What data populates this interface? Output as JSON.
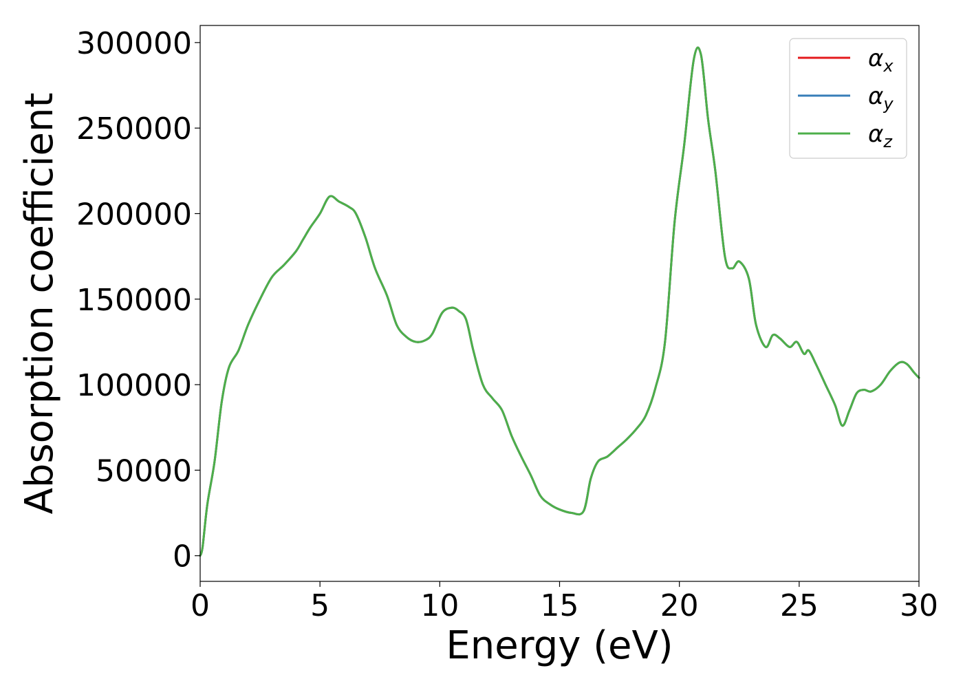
{
  "chart_data": {
    "type": "line",
    "title": "",
    "xlabel": "Energy (eV)",
    "ylabel": "Absorption coefficient",
    "xlim": [
      0,
      30
    ],
    "ylim": [
      -15000,
      310000
    ],
    "xticks": [
      0,
      5,
      10,
      15,
      20,
      25,
      30
    ],
    "xtick_labels": [
      "0",
      "5",
      "10",
      "15",
      "20",
      "25",
      "30"
    ],
    "yticks": [
      0,
      50000,
      100000,
      150000,
      200000,
      250000,
      300000
    ],
    "ytick_labels": [
      "0",
      "50000",
      "100000",
      "150000",
      "200000",
      "250000",
      "300000"
    ],
    "grid": false,
    "legend_position": "top-right",
    "series": [
      {
        "name": "α_x",
        "legend_base": "α",
        "legend_sub": "x",
        "color": "#e41a1c",
        "x": [
          0,
          0.1,
          0.3,
          0.6,
          0.9,
          1.2,
          1.6,
          2.0,
          2.5,
          3.0,
          3.5,
          4.0,
          4.3,
          4.6,
          5.0,
          5.4,
          5.8,
          6.2,
          6.5,
          6.9,
          7.3,
          7.8,
          8.2,
          8.6,
          9.0,
          9.4,
          9.7,
          10.1,
          10.5,
          10.8,
          11.1,
          11.4,
          11.8,
          12.2,
          12.6,
          13.0,
          13.4,
          13.8,
          14.2,
          14.6,
          15.0,
          15.5,
          16.0,
          16.3,
          16.6,
          17.0,
          17.4,
          17.8,
          18.2,
          18.6,
          19.0,
          19.4,
          19.8,
          20.2,
          20.6,
          20.9,
          21.2,
          21.5,
          21.9,
          22.2,
          22.5,
          22.9,
          23.2,
          23.6,
          23.9,
          24.2,
          24.6,
          24.9,
          25.2,
          25.4,
          25.7,
          26.1,
          26.5,
          26.8,
          27.1,
          27.4,
          27.7,
          28.0,
          28.4,
          28.8,
          29.2,
          29.5,
          29.8,
          30.0
        ],
        "y": [
          0,
          5000,
          30000,
          55000,
          90000,
          110000,
          120000,
          135000,
          150000,
          163000,
          170000,
          178000,
          185000,
          192000,
          200000,
          210000,
          207000,
          204000,
          200000,
          186000,
          168000,
          152000,
          135000,
          128000,
          125000,
          126000,
          130000,
          142000,
          145000,
          143000,
          138000,
          120000,
          100000,
          92000,
          85000,
          70000,
          58000,
          47000,
          35000,
          30000,
          27000,
          25000,
          26000,
          45000,
          55000,
          58000,
          63000,
          68000,
          74000,
          82000,
          98000,
          125000,
          195000,
          240000,
          290000,
          293000,
          255000,
          225000,
          175000,
          168000,
          172000,
          162000,
          135000,
          122000,
          129000,
          127000,
          122000,
          125000,
          118000,
          120000,
          112000,
          100000,
          88000,
          76000,
          85000,
          95000,
          97000,
          96000,
          100000,
          108000,
          113000,
          112000,
          107000,
          104000
        ]
      },
      {
        "name": "α_y",
        "legend_base": "α",
        "legend_sub": "y",
        "color": "#377eb8",
        "x": [
          0,
          0.1,
          0.3,
          0.6,
          0.9,
          1.2,
          1.6,
          2.0,
          2.5,
          3.0,
          3.5,
          4.0,
          4.3,
          4.6,
          5.0,
          5.4,
          5.8,
          6.2,
          6.5,
          6.9,
          7.3,
          7.8,
          8.2,
          8.6,
          9.0,
          9.4,
          9.7,
          10.1,
          10.5,
          10.8,
          11.1,
          11.4,
          11.8,
          12.2,
          12.6,
          13.0,
          13.4,
          13.8,
          14.2,
          14.6,
          15.0,
          15.5,
          16.0,
          16.3,
          16.6,
          17.0,
          17.4,
          17.8,
          18.2,
          18.6,
          19.0,
          19.4,
          19.8,
          20.2,
          20.6,
          20.9,
          21.2,
          21.5,
          21.9,
          22.2,
          22.5,
          22.9,
          23.2,
          23.6,
          23.9,
          24.2,
          24.6,
          24.9,
          25.2,
          25.4,
          25.7,
          26.1,
          26.5,
          26.8,
          27.1,
          27.4,
          27.7,
          28.0,
          28.4,
          28.8,
          29.2,
          29.5,
          29.8,
          30.0
        ],
        "y": [
          0,
          5000,
          30000,
          55000,
          90000,
          110000,
          120000,
          135000,
          150000,
          163000,
          170000,
          178000,
          185000,
          192000,
          200000,
          210000,
          207000,
          204000,
          200000,
          186000,
          168000,
          152000,
          135000,
          128000,
          125000,
          126000,
          130000,
          142000,
          145000,
          143000,
          138000,
          120000,
          100000,
          92000,
          85000,
          70000,
          58000,
          47000,
          35000,
          30000,
          27000,
          25000,
          26000,
          45000,
          55000,
          58000,
          63000,
          68000,
          74000,
          82000,
          98000,
          125000,
          195000,
          240000,
          290000,
          293000,
          255000,
          225000,
          175000,
          168000,
          172000,
          162000,
          135000,
          122000,
          129000,
          127000,
          122000,
          125000,
          118000,
          120000,
          112000,
          100000,
          88000,
          76000,
          85000,
          95000,
          97000,
          96000,
          100000,
          108000,
          113000,
          112000,
          107000,
          104000
        ]
      },
      {
        "name": "α_z",
        "legend_base": "α",
        "legend_sub": "z",
        "color": "#4daf4a",
        "x": [
          0,
          0.1,
          0.3,
          0.6,
          0.9,
          1.2,
          1.6,
          2.0,
          2.5,
          3.0,
          3.5,
          4.0,
          4.3,
          4.6,
          5.0,
          5.4,
          5.8,
          6.2,
          6.5,
          6.9,
          7.3,
          7.8,
          8.2,
          8.6,
          9.0,
          9.4,
          9.7,
          10.1,
          10.5,
          10.8,
          11.1,
          11.4,
          11.8,
          12.2,
          12.6,
          13.0,
          13.4,
          13.8,
          14.2,
          14.6,
          15.0,
          15.5,
          16.0,
          16.3,
          16.6,
          17.0,
          17.4,
          17.8,
          18.2,
          18.6,
          19.0,
          19.4,
          19.8,
          20.2,
          20.6,
          20.9,
          21.2,
          21.5,
          21.9,
          22.2,
          22.5,
          22.9,
          23.2,
          23.6,
          23.9,
          24.2,
          24.6,
          24.9,
          25.2,
          25.4,
          25.7,
          26.1,
          26.5,
          26.8,
          27.1,
          27.4,
          27.7,
          28.0,
          28.4,
          28.8,
          29.2,
          29.5,
          29.8,
          30.0
        ],
        "y": [
          0,
          5000,
          30000,
          55000,
          90000,
          110000,
          120000,
          135000,
          150000,
          163000,
          170000,
          178000,
          185000,
          192000,
          200000,
          210000,
          207000,
          204000,
          200000,
          186000,
          168000,
          152000,
          135000,
          128000,
          125000,
          126000,
          130000,
          142000,
          145000,
          143000,
          138000,
          120000,
          100000,
          92000,
          85000,
          70000,
          58000,
          47000,
          35000,
          30000,
          27000,
          25000,
          26000,
          45000,
          55000,
          58000,
          63000,
          68000,
          74000,
          82000,
          98000,
          125000,
          195000,
          240000,
          290000,
          293000,
          255000,
          225000,
          175000,
          168000,
          172000,
          162000,
          135000,
          122000,
          129000,
          127000,
          122000,
          125000,
          118000,
          120000,
          112000,
          100000,
          88000,
          76000,
          85000,
          95000,
          97000,
          96000,
          100000,
          108000,
          113000,
          112000,
          107000,
          104000
        ]
      }
    ]
  }
}
